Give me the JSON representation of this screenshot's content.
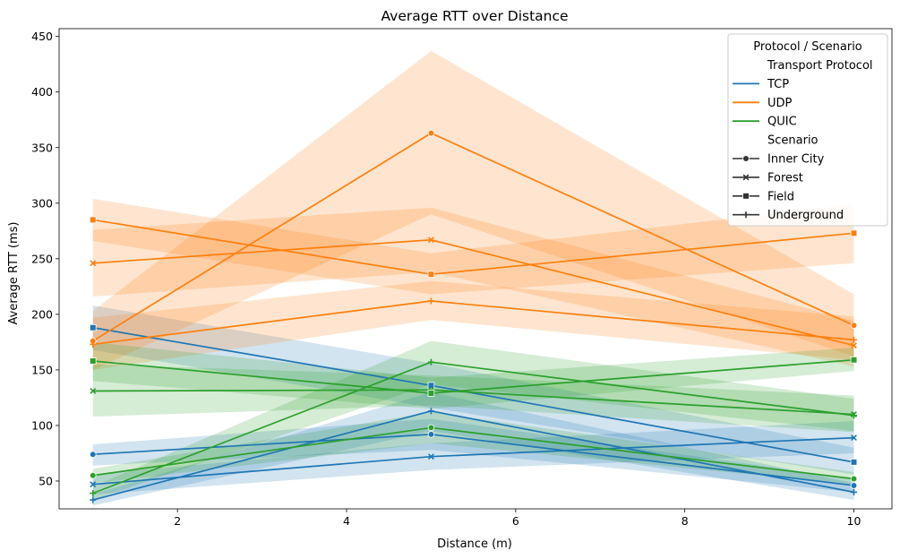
{
  "chart_data": {
    "type": "line",
    "title": "Average RTT over Distance",
    "xlabel": "Distance (m)",
    "ylabel": "Average RTT (ms)",
    "xlim": [
      0.6,
      10.45
    ],
    "ylim": [
      25,
      457
    ],
    "xticks": [
      2,
      4,
      6,
      8,
      10
    ],
    "yticks": [
      50,
      100,
      150,
      200,
      250,
      300,
      350,
      400,
      450
    ],
    "x": [
      1,
      5,
      10
    ],
    "grid": false,
    "legend": {
      "title": "Protocol / Scenario",
      "placement": "top-right",
      "protocol_header": "Transport Protocol",
      "scenario_header": "Scenario",
      "protocols": [
        {
          "name": "TCP",
          "color": "#1f77b4"
        },
        {
          "name": "UDP",
          "color": "#ff7f0e"
        },
        {
          "name": "QUIC",
          "color": "#2ca02c"
        }
      ],
      "scenarios": [
        {
          "name": "Inner City",
          "marker": "circle"
        },
        {
          "name": "Forest",
          "marker": "x"
        },
        {
          "name": "Field",
          "marker": "square"
        },
        {
          "name": "Underground",
          "marker": "plus"
        }
      ]
    },
    "series": [
      {
        "protocol": "TCP",
        "scenario": "Inner City",
        "values": [
          74,
          92,
          46
        ],
        "ci_low": [
          64,
          78,
          40
        ],
        "ci_high": [
          83,
          106,
          52
        ]
      },
      {
        "protocol": "TCP",
        "scenario": "Forest",
        "values": [
          47,
          72,
          89
        ],
        "ci_low": [
          38,
          60,
          75
        ],
        "ci_high": [
          56,
          84,
          104
        ]
      },
      {
        "protocol": "TCP",
        "scenario": "Field",
        "values": [
          188,
          136,
          67
        ],
        "ci_low": [
          168,
          116,
          56
        ],
        "ci_high": [
          208,
          156,
          80
        ]
      },
      {
        "protocol": "TCP",
        "scenario": "Underground",
        "values": [
          33,
          113,
          40
        ],
        "ci_low": [
          28,
          95,
          33
        ],
        "ci_high": [
          38,
          130,
          48
        ]
      },
      {
        "protocol": "UDP",
        "scenario": "Inner City",
        "values": [
          176,
          363,
          190
        ],
        "ci_low": [
          150,
          290,
          162
        ],
        "ci_high": [
          203,
          437,
          218
        ]
      },
      {
        "protocol": "UDP",
        "scenario": "Forest",
        "values": [
          246,
          267,
          172
        ],
        "ci_low": [
          216,
          238,
          153
        ],
        "ci_high": [
          276,
          296,
          194
        ]
      },
      {
        "protocol": "UDP",
        "scenario": "Field",
        "values": [
          285,
          236,
          273
        ],
        "ci_low": [
          266,
          218,
          246
        ],
        "ci_high": [
          304,
          255,
          299
        ]
      },
      {
        "protocol": "UDP",
        "scenario": "Underground",
        "values": [
          173,
          212,
          177
        ],
        "ci_low": [
          150,
          195,
          159
        ],
        "ci_high": [
          197,
          230,
          198
        ]
      },
      {
        "protocol": "QUIC",
        "scenario": "Inner City",
        "values": [
          55,
          98,
          52
        ],
        "ci_low": [
          48,
          84,
          47
        ],
        "ci_high": [
          61,
          112,
          58
        ]
      },
      {
        "protocol": "QUIC",
        "scenario": "Forest",
        "values": [
          131,
          132,
          110
        ],
        "ci_low": [
          108,
          118,
          94
        ],
        "ci_high": [
          155,
          145,
          127
        ]
      },
      {
        "protocol": "QUIC",
        "scenario": "Field",
        "values": [
          158,
          129,
          159
        ],
        "ci_low": [
          140,
          115,
          149
        ],
        "ci_high": [
          175,
          143,
          170
        ]
      },
      {
        "protocol": "QUIC",
        "scenario": "Underground",
        "values": [
          39,
          157,
          109
        ],
        "ci_low": [
          33,
          137,
          95
        ],
        "ci_high": [
          45,
          176,
          124
        ]
      }
    ]
  }
}
